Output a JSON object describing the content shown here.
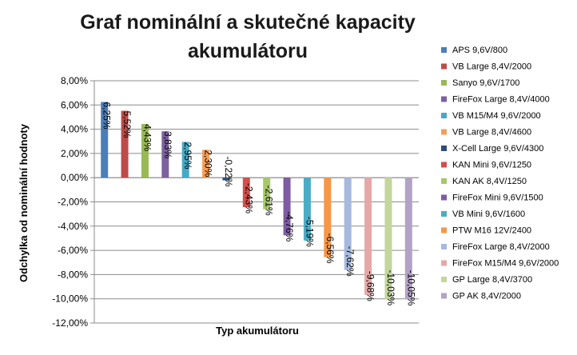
{
  "chart_data": {
    "type": "bar",
    "title_lines": [
      "Graf nominální a skutečné kapacity",
      "akumulátoru"
    ],
    "xlabel": "Typ akumulátoru",
    "ylabel": "Odchylka od nominální hodnoty",
    "ylim": [
      -12,
      8
    ],
    "yticks": [
      8,
      6,
      4,
      2,
      0,
      -2,
      -4,
      -6,
      -8,
      -10,
      -12
    ],
    "ytick_labels": [
      "8,00%",
      "6,00%",
      "4,00%",
      "2,00%",
      "0,00%",
      "-2,00%",
      "-4,00%",
      "-6,00%",
      "-8,00%",
      "-10,00%",
      "-12,00%"
    ],
    "grid": true,
    "legend_position": "right",
    "series": [
      {
        "name": "APS 9,6V/800",
        "value": 6.25,
        "label": "6,25%",
        "color": "#4a7ebb"
      },
      {
        "name": "VB Large 8,4V/2000",
        "value": 5.52,
        "label": "5,52%",
        "color": "#be4b48"
      },
      {
        "name": "Sanyo 9,6V/1700",
        "value": 4.43,
        "label": "4,43%",
        "color": "#98b954"
      },
      {
        "name": "FireFox Large 8,4V/4000",
        "value": 3.83,
        "label": "3,83%",
        "color": "#7d60a0"
      },
      {
        "name": "VB M15/M4 9,6V/2000",
        "value": 2.95,
        "label": "2,95%",
        "color": "#46aac5"
      },
      {
        "name": "VB Large 8,4V/4600",
        "value": 2.3,
        "label": "2,30%",
        "color": "#f59d56"
      },
      {
        "name": "X-Cell Large 9,6V/4300",
        "value": -0.22,
        "label": "-0,22%",
        "color": "#2c4d75"
      },
      {
        "name": "KAN Mini 9,6V/1250",
        "value": -2.43,
        "label": "-2,43%",
        "color": "#d24f4b"
      },
      {
        "name": "KAN AK 8,4V/1250",
        "value": -2.61,
        "label": "-2,61%",
        "color": "#a5c86b"
      },
      {
        "name": "FireFox Mini 9,6V/1500",
        "value": -4.76,
        "label": "-4,76%",
        "color": "#7e5ba4"
      },
      {
        "name": "VB Mini 9,6V/1600",
        "value": -5.19,
        "label": "-5,19%",
        "color": "#4bacc6"
      },
      {
        "name": "PTW M16 12V/2400",
        "value": -6.56,
        "label": "-6,56%",
        "color": "#f79646"
      },
      {
        "name": "FireFox Large 8,4V/2000",
        "value": -7.62,
        "label": "-7,62%",
        "color": "#a7b9dd"
      },
      {
        "name": "FireFox M15/M4 9,6V/2000",
        "value": -9.68,
        "label": "-9,68%",
        "color": "#e6a8a7"
      },
      {
        "name": "GP Large 8,4V/3700",
        "value": -10.03,
        "label": "-10,03%",
        "color": "#c3d69b"
      },
      {
        "name": "GP AK 8,4V/2000",
        "value": -10.05,
        "label": "-10,05%",
        "color": "#b3a2c7"
      }
    ]
  }
}
